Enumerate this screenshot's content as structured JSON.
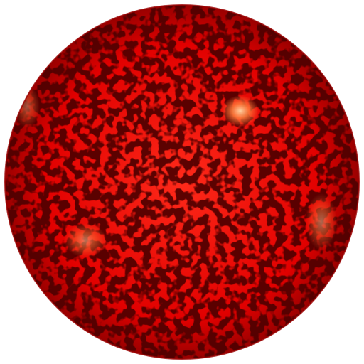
{
  "image": {
    "subject": "solar-disk",
    "colors": {
      "background": "#ffffff",
      "disk_base": "#e10000",
      "disk_bright": "#ff2a1a",
      "limb_dark": "#9a0000",
      "granule_dark": "#1a0000",
      "plage_bright": "#ff7a3a",
      "plage_core": "#ffd0a0"
    }
  }
}
